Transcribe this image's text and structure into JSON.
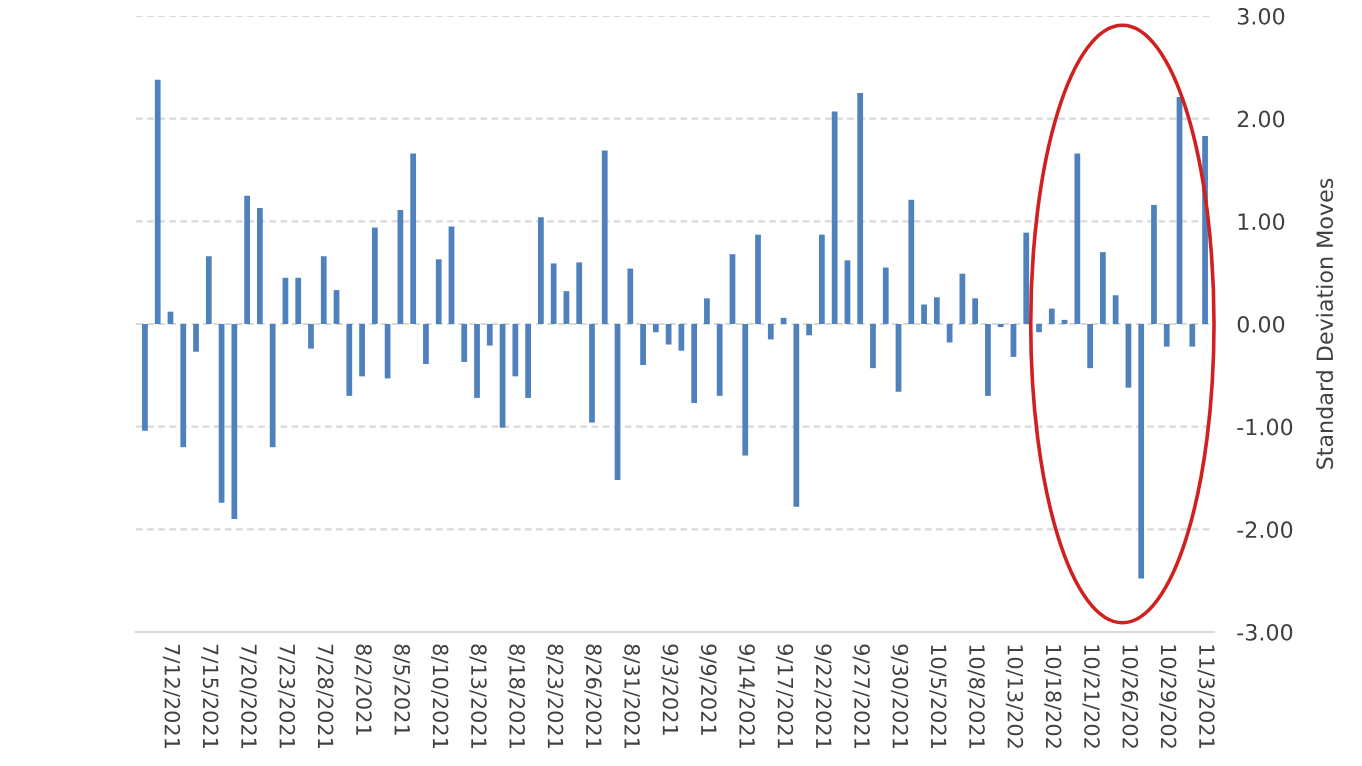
{
  "chart_data": {
    "type": "bar",
    "categories": [
      null,
      null,
      "7/12/2021",
      null,
      null,
      "7/15/2021",
      null,
      null,
      "7/20/2021",
      null,
      null,
      "7/23/2021",
      null,
      null,
      "7/28/2021",
      null,
      null,
      "8/2/2021",
      null,
      null,
      "8/5/2021",
      null,
      null,
      "8/10/2021",
      null,
      null,
      "8/13/2021",
      null,
      null,
      "8/18/2021",
      null,
      null,
      "8/23/2021",
      null,
      null,
      "8/26/2021",
      null,
      null,
      "8/31/2021",
      null,
      null,
      "9/3/2021",
      null,
      null,
      "9/9/2021",
      null,
      null,
      "9/14/2021",
      null,
      null,
      "9/17/2021",
      null,
      null,
      "9/22/2021",
      null,
      null,
      "9/27/2021",
      null,
      null,
      "9/30/2021",
      null,
      null,
      "10/5/2021",
      null,
      null,
      "10/8/2021",
      null,
      null,
      "10/13/202",
      null,
      null,
      "10/18/202",
      null,
      null,
      "10/21/202",
      null,
      null,
      "10/26/202",
      null,
      null,
      "10/29/202",
      null,
      null,
      "11/3/2021"
    ],
    "values": [
      -1.04,
      2.38,
      0.12,
      -1.2,
      -0.27,
      0.66,
      -1.74,
      -1.9,
      1.25,
      1.13,
      -1.2,
      0.45,
      0.45,
      -0.24,
      0.66,
      0.33,
      -0.7,
      -0.51,
      0.94,
      -0.53,
      1.11,
      1.66,
      -0.39,
      0.63,
      0.95,
      -0.37,
      -0.72,
      -0.21,
      -1.01,
      -0.51,
      -0.72,
      1.04,
      0.59,
      0.32,
      0.6,
      -0.96,
      1.69,
      -1.52,
      0.54,
      -0.4,
      -0.08,
      -0.2,
      -0.26,
      -0.77,
      0.25,
      -0.7,
      0.68,
      -1.28,
      0.87,
      -0.15,
      0.06,
      -1.78,
      -0.11,
      0.87,
      2.07,
      0.62,
      2.25,
      -0.43,
      0.55,
      -0.66,
      1.21,
      0.19,
      0.26,
      -0.18,
      0.49,
      0.25,
      -0.7,
      -0.03,
      -0.32,
      0.89,
      -0.08,
      0.15,
      0.04,
      1.66,
      -0.43,
      0.7,
      0.28,
      -0.62,
      -2.48,
      1.16,
      -0.22,
      2.21,
      -0.22,
      1.83
    ],
    "color": "#4f81bd",
    "ylabel": "Standard Deviation Moves",
    "ylim": [
      -3,
      3
    ],
    "yticks": [
      {
        "value": 3,
        "label": "3.00"
      },
      {
        "value": 2,
        "label": "2.00"
      },
      {
        "value": 1,
        "label": "1.00"
      },
      {
        "value": 0,
        "label": "0.00"
      },
      {
        "value": -1,
        "label": "-1.00"
      },
      {
        "value": -2,
        "label": "-2.00"
      },
      {
        "value": -3,
        "label": "-3.00"
      }
    ],
    "grid": "y"
  }
}
